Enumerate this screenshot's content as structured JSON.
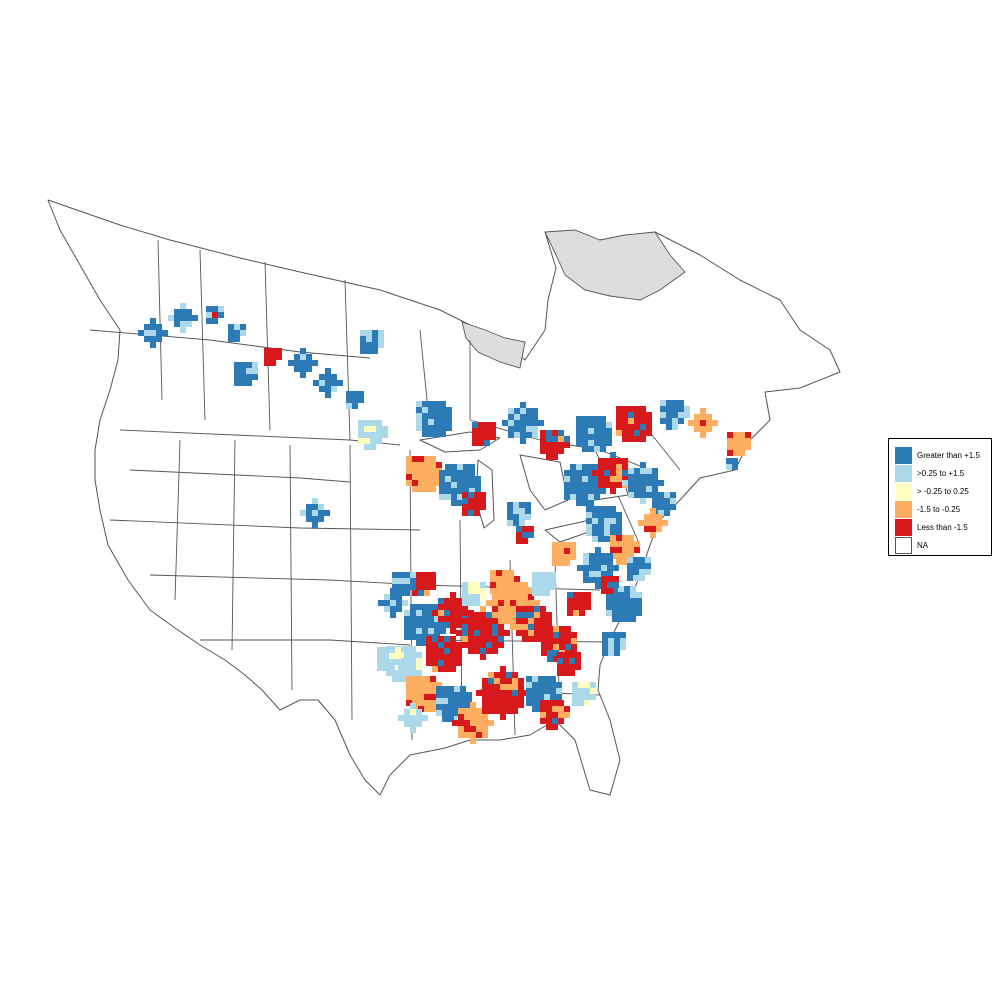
{
  "legend": {
    "items": [
      {
        "label": "Greater than +1.5",
        "color": "#2c7bb6"
      },
      {
        "label": ">0.25 to +1.5",
        "color": "#abd9e9"
      },
      {
        "label": "> -0.25 to 0.25",
        "color": "#ffffbf"
      },
      {
        "label": "-1.5 to -0.25",
        "color": "#fdae61"
      },
      {
        "label": "Less than -1.5",
        "color": "#d7191c"
      },
      {
        "label": "NA",
        "color": "#ffffff"
      }
    ]
  }
}
